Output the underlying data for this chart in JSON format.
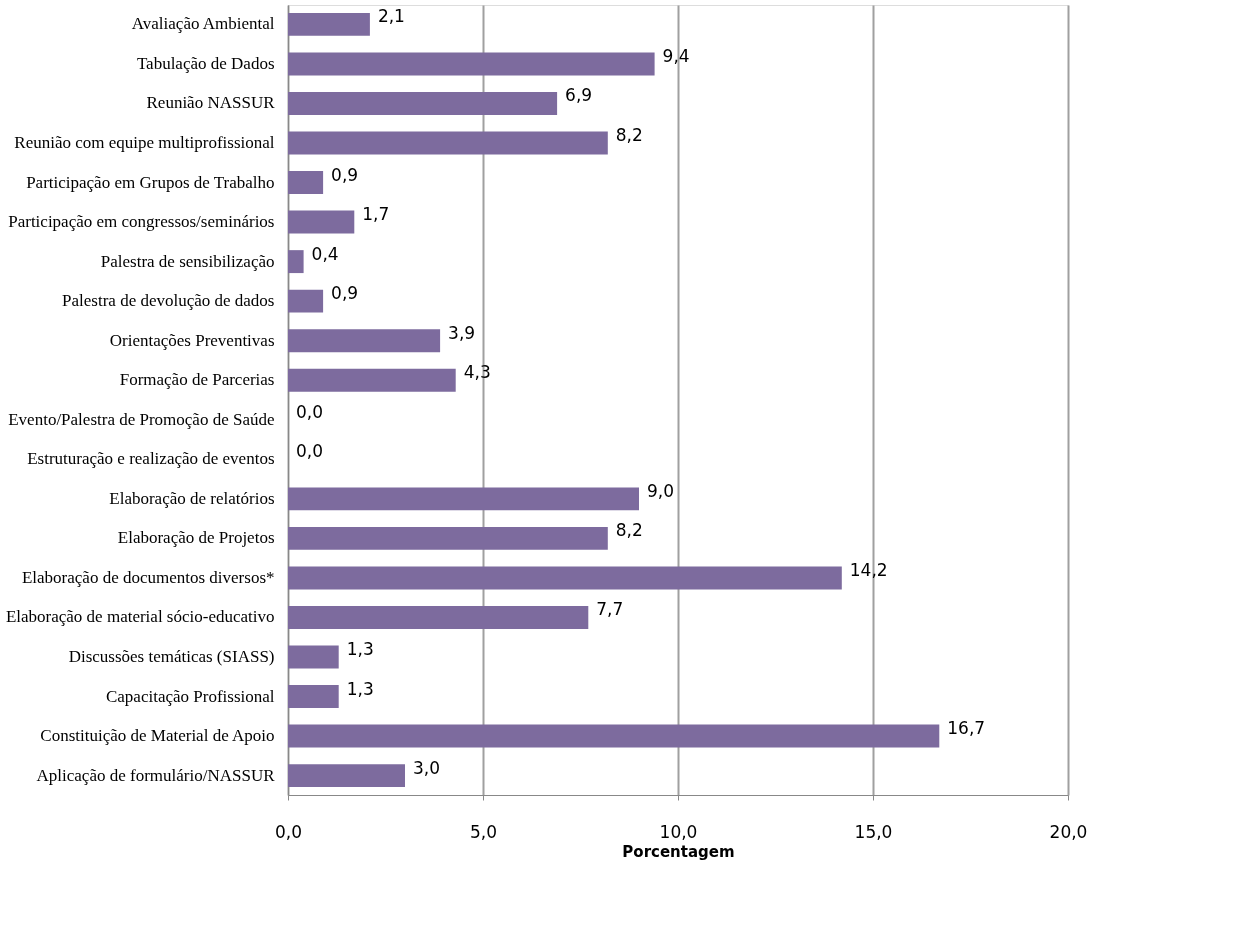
{
  "chart_data": {
    "type": "bar",
    "orientation": "horizontal",
    "xlabel": "Porcentagem",
    "categories": [
      "Avaliação Ambiental",
      "Tabulação de Dados",
      "Reunião NASSUR",
      "Reunião com equipe multiprofissional",
      "Participação em Grupos de Trabalho",
      "Participação em congressos/seminários",
      "Palestra de sensibilização",
      "Palestra de devolução de dados",
      "Orientações Preventivas",
      "Formação de Parcerias",
      "Evento/Palestra de Promoção de Saúde",
      "Estruturação e realização de eventos",
      "Elaboração de relatórios",
      "Elaboração de Projetos",
      "Elaboração de documentos diversos*",
      "Elaboração de material sócio-educativo",
      "Discussões temáticas (SIASS)",
      "Capacitação Profissional",
      "Constituição de Material de Apoio",
      "Aplicação de formulário/NASSUR"
    ],
    "values": [
      2.1,
      9.4,
      6.9,
      8.2,
      0.9,
      1.7,
      0.4,
      0.9,
      3.9,
      4.3,
      0.0,
      0.0,
      9.0,
      8.2,
      14.2,
      7.7,
      1.3,
      1.3,
      16.7,
      3.0
    ],
    "value_labels": [
      "2,1",
      "9,4",
      "6,9",
      "8,2",
      "0,9",
      "1,7",
      "0,4",
      "0,9",
      "3,9",
      "4,3",
      "0,0",
      "0,0",
      "9,0",
      "8,2",
      "14,2",
      "7,7",
      "1,3",
      "1,3",
      "16,7",
      "3,0"
    ],
    "color": "#7d6b9e",
    "xlim": [
      0,
      20
    ],
    "xticks": [
      {
        "value": 0,
        "label": "0,0"
      },
      {
        "value": 5,
        "label": "5,0"
      },
      {
        "value": 10,
        "label": "10,0"
      },
      {
        "value": 15,
        "label": "15,0"
      },
      {
        "value": 20,
        "label": "20,0"
      }
    ],
    "grid": "x"
  }
}
